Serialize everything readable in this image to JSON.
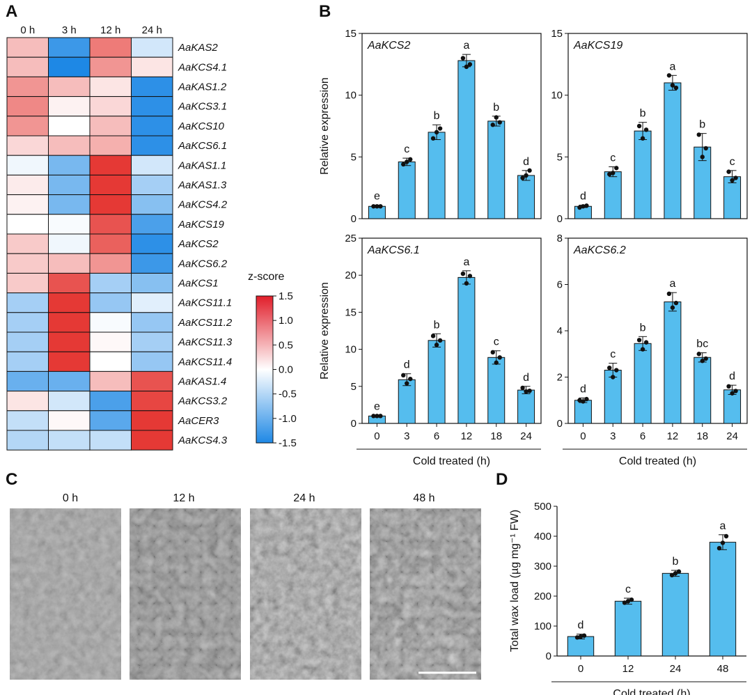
{
  "colors": {
    "bar": "#55BDEE",
    "outline": "#111111",
    "low": "#1E88E5",
    "mid": "#FFFFFF",
    "high": "#E53935"
  },
  "panels": {
    "a": "A",
    "b": "B",
    "c": "C",
    "d": "D"
  },
  "heatmap": {
    "columns": [
      "0 h",
      "3 h",
      "12 h",
      "24 h"
    ],
    "rows": [
      {
        "gene": "AaKAS2",
        "values": [
          0.5,
          -1.3,
          1.0,
          -0.3
        ]
      },
      {
        "gene": "AaKCS4.1",
        "values": [
          0.5,
          -1.5,
          0.8,
          0.2
        ]
      },
      {
        "gene": "AaKAS1.2",
        "values": [
          0.8,
          0.5,
          0.2,
          -1.4
        ]
      },
      {
        "gene": "AaKCS3.1",
        "values": [
          0.9,
          0.1,
          0.3,
          -1.4
        ]
      },
      {
        "gene": "AaKCS10",
        "values": [
          0.8,
          0.0,
          0.5,
          -1.4
        ]
      },
      {
        "gene": "AaKCS6.1",
        "values": [
          0.3,
          0.5,
          0.6,
          -1.4
        ]
      },
      {
        "gene": "AaKAS1.1",
        "values": [
          -0.1,
          -0.9,
          1.5,
          -0.3
        ]
      },
      {
        "gene": "AaKAS1.3",
        "values": [
          0.15,
          -0.9,
          1.5,
          -0.6
        ]
      },
      {
        "gene": "AaKCS4.2",
        "values": [
          0.1,
          -0.9,
          1.5,
          -0.8
        ]
      },
      {
        "gene": "AaKCS19",
        "values": [
          0.0,
          -0.05,
          1.3,
          -1.2
        ]
      },
      {
        "gene": "AaKCS2",
        "values": [
          0.4,
          -0.1,
          1.2,
          -1.4
        ]
      },
      {
        "gene": "AaKCS6.2",
        "values": [
          0.4,
          0.5,
          0.8,
          -1.3
        ]
      },
      {
        "gene": "AaKCS1",
        "values": [
          0.4,
          1.3,
          -0.6,
          -0.8
        ]
      },
      {
        "gene": "AaKCS11.1",
        "values": [
          -0.6,
          1.5,
          -0.7,
          -0.2
        ]
      },
      {
        "gene": "AaKCS11.2",
        "values": [
          -0.6,
          1.5,
          -0.05,
          -0.7
        ]
      },
      {
        "gene": "AaKCS11.3",
        "values": [
          -0.6,
          1.5,
          0.05,
          -0.6
        ]
      },
      {
        "gene": "AaKCS11.4",
        "values": [
          -0.6,
          1.5,
          0.0,
          -0.7
        ]
      },
      {
        "gene": "AaKAS1.4",
        "values": [
          -1.0,
          -1.0,
          0.5,
          1.3
        ]
      },
      {
        "gene": "AaKCS3.2",
        "values": [
          0.2,
          -0.3,
          -1.2,
          1.4
        ]
      },
      {
        "gene": "AaCER3",
        "values": [
          -0.4,
          0.05,
          -1.1,
          1.5
        ]
      },
      {
        "gene": "AaKCS4.3",
        "values": [
          -0.5,
          -0.4,
          -0.4,
          1.5
        ]
      }
    ],
    "legend_title": "z-score",
    "legend_ticks": [
      "1.5",
      "1.0",
      "0.5",
      "0.0",
      "-0.5",
      "-1.0",
      "-1.5"
    ],
    "legend_tick_values": [
      1.5,
      1.0,
      0.5,
      0.0,
      -0.5,
      -1.0,
      -1.5
    ]
  },
  "chart_data": [
    {
      "type": "bar",
      "title": "AaKCS2",
      "ylabel": "Relative  expression",
      "xlabel": "",
      "categories": [
        "0",
        "3",
        "6",
        "12",
        "18",
        "24"
      ],
      "values": [
        1.0,
        4.6,
        7.0,
        12.8,
        7.9,
        3.5
      ],
      "errors": [
        0.1,
        0.3,
        0.6,
        0.5,
        0.4,
        0.4
      ],
      "points": [
        [
          1.0,
          1.0,
          1.0
        ],
        [
          4.4,
          4.6,
          4.8
        ],
        [
          6.5,
          7.0,
          7.3
        ],
        [
          13.0,
          12.3,
          12.5
        ],
        [
          7.6,
          8.2,
          7.8
        ],
        [
          3.3,
          3.5,
          3.9
        ]
      ],
      "letters": [
        "e",
        "c",
        "b",
        "a",
        "b",
        "d"
      ],
      "ylim": [
        0,
        15
      ],
      "yticks": [
        0,
        5,
        10,
        15
      ],
      "ytick_labels": [
        "0",
        "5",
        "10",
        "15"
      ]
    },
    {
      "type": "bar",
      "title": "AaKCS19",
      "ylabel": "",
      "xlabel": "",
      "categories": [
        "0",
        "3",
        "6",
        "12",
        "18",
        "24"
      ],
      "values": [
        1.0,
        3.8,
        7.1,
        11.0,
        5.8,
        3.4
      ],
      "errors": [
        0.1,
        0.4,
        0.7,
        0.6,
        1.1,
        0.5
      ],
      "points": [
        [
          0.9,
          1.0,
          1.05
        ],
        [
          3.6,
          3.7,
          4.1
        ],
        [
          7.5,
          6.5,
          7.2
        ],
        [
          11.6,
          10.8,
          10.6
        ],
        [
          6.8,
          5.0,
          5.7
        ],
        [
          3.8,
          3.1,
          3.3
        ]
      ],
      "letters": [
        "d",
        "c",
        "b",
        "a",
        "b",
        "c"
      ],
      "ylim": [
        0,
        15
      ],
      "yticks": [
        0,
        5,
        10,
        15
      ],
      "ytick_labels": [
        "0",
        "5",
        "10",
        "15"
      ]
    },
    {
      "type": "bar",
      "title": "AaKCS6.1",
      "ylabel": "Relative  expression",
      "xlabel": "Cold treated (h)",
      "categories": [
        "0",
        "3",
        "6",
        "12",
        "18",
        "24"
      ],
      "values": [
        1.0,
        5.9,
        11.2,
        19.7,
        8.9,
        4.5
      ],
      "errors": [
        0.1,
        0.8,
        0.9,
        0.9,
        0.9,
        0.5
      ],
      "points": [
        [
          1.0,
          1.0,
          1.0
        ],
        [
          6.5,
          5.4,
          6.0
        ],
        [
          11.8,
          10.6,
          11.2
        ],
        [
          20.2,
          18.9,
          19.9
        ],
        [
          9.6,
          8.2,
          8.9
        ],
        [
          4.8,
          4.3,
          4.4
        ]
      ],
      "letters": [
        "e",
        "d",
        "b",
        "a",
        "c",
        "d"
      ],
      "ylim": [
        0,
        25
      ],
      "yticks": [
        0,
        5,
        10,
        15,
        20,
        25
      ],
      "ytick_labels": [
        "0",
        "5",
        "10",
        "15",
        "20",
        "25"
      ]
    },
    {
      "type": "bar",
      "title": "AaKCS6.2",
      "ylabel": "",
      "xlabel": "Cold treated (h)",
      "categories": [
        "0",
        "3",
        "6",
        "12",
        "18",
        "24"
      ],
      "values": [
        1.0,
        2.3,
        3.45,
        5.25,
        2.85,
        1.45
      ],
      "errors": [
        0.1,
        0.3,
        0.3,
        0.4,
        0.2,
        0.2
      ],
      "points": [
        [
          1.0,
          0.95,
          1.05
        ],
        [
          2.4,
          2.0,
          2.3
        ],
        [
          3.6,
          3.2,
          3.5
        ],
        [
          5.6,
          5.0,
          5.2
        ],
        [
          3.0,
          2.7,
          2.8
        ],
        [
          1.6,
          1.3,
          1.4
        ]
      ],
      "letters": [
        "d",
        "c",
        "b",
        "a",
        "bc",
        "d"
      ],
      "ylim": [
        0,
        8
      ],
      "yticks": [
        0,
        2,
        4,
        6,
        8
      ],
      "ytick_labels": [
        "0",
        "2",
        "4",
        "6",
        "8"
      ]
    },
    {
      "type": "bar",
      "title": "",
      "ylabel": "Total wax load (µg mg⁻¹ FW)",
      "xlabel": "Cold treated (h)",
      "categories": [
        "0",
        "12",
        "24",
        "48"
      ],
      "values": [
        65,
        183,
        276,
        380
      ],
      "errors": [
        8,
        10,
        10,
        25
      ],
      "points": [
        [
          62,
          65,
          68
        ],
        [
          178,
          183,
          188
        ],
        [
          270,
          276,
          282
        ],
        [
          360,
          378,
          400
        ]
      ],
      "letters": [
        "d",
        "c",
        "b",
        "a"
      ],
      "ylim": [
        0,
        500
      ],
      "yticks": [
        0,
        100,
        200,
        300,
        400,
        500
      ],
      "ytick_labels": [
        "0",
        "100",
        "200",
        "300",
        "400",
        "500"
      ]
    }
  ],
  "micrographs": {
    "labels": [
      "0 h",
      "12 h",
      "24 h",
      "48 h"
    ]
  }
}
